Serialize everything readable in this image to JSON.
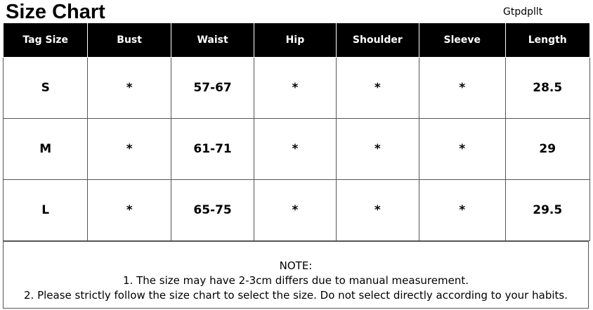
{
  "header": {
    "title": "Size Chart",
    "brand": "Gtpdpllt"
  },
  "table": {
    "columns": [
      "Tag Size",
      "Bust",
      "Waist",
      "Hip",
      "Shoulder",
      "Sleeve",
      "Length"
    ],
    "rows": [
      [
        "S",
        "*",
        "57-67",
        "*",
        "*",
        "*",
        "28.5"
      ],
      [
        "M",
        "*",
        "61-71",
        "*",
        "*",
        "*",
        "29"
      ],
      [
        "L",
        "*",
        "65-75",
        "*",
        "*",
        "*",
        "29.5"
      ]
    ]
  },
  "notes": {
    "heading": "NOTE:",
    "lines": [
      "1. The size may have 2-3cm differs due to manual measurement.",
      "2. Please strictly follow the size chart to select the size. Do not select directly according to your habits."
    ]
  }
}
